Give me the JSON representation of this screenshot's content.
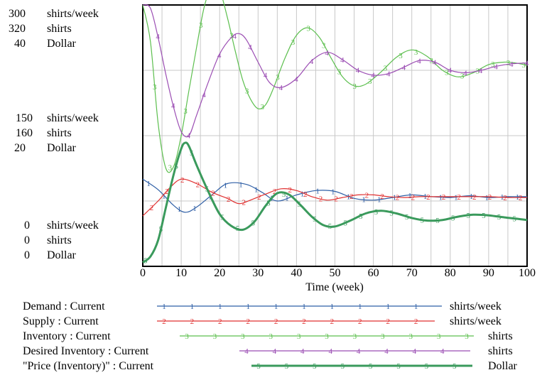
{
  "chart_data": {
    "type": "line",
    "xlabel": "Time (week)",
    "xlim": [
      0,
      100
    ],
    "x_ticks": [
      "0",
      "10",
      "20",
      "30",
      "40",
      "50",
      "60",
      "70",
      "80",
      "90",
      "100"
    ],
    "grid": true,
    "y_axis_labels": {
      "top": [
        {
          "value": "300",
          "unit": "shirts/week"
        },
        {
          "value": "320",
          "unit": "shirts"
        },
        {
          "value": "40",
          "unit": "Dollar"
        }
      ],
      "middle": [
        {
          "value": "150",
          "unit": "shirts/week"
        },
        {
          "value": "160",
          "unit": "shirts"
        },
        {
          "value": "20",
          "unit": "Dollar"
        }
      ],
      "bottom": [
        {
          "value": "0",
          "unit": "shirts/week"
        },
        {
          "value": "0",
          "unit": "shirts"
        },
        {
          "value": "0",
          "unit": "Dollar"
        }
      ]
    },
    "legend_position": "bottom",
    "series": [
      {
        "name": "Demand : Current",
        "marker": "1",
        "unit": "shirts/week",
        "color": "#2f5fa6",
        "ymax": 300,
        "points": [
          [
            0,
            100
          ],
          [
            4,
            88
          ],
          [
            8,
            70
          ],
          [
            11,
            62
          ],
          [
            14,
            68
          ],
          [
            18,
            82
          ],
          [
            22,
            95
          ],
          [
            27,
            94
          ],
          [
            31,
            85
          ],
          [
            35,
            75
          ],
          [
            40,
            82
          ],
          [
            45,
            87
          ],
          [
            50,
            86
          ],
          [
            55,
            78
          ],
          [
            60,
            76
          ],
          [
            65,
            79
          ],
          [
            70,
            82
          ],
          [
            75,
            80
          ],
          [
            80,
            79
          ],
          [
            85,
            81
          ],
          [
            90,
            79
          ],
          [
            95,
            80
          ],
          [
            100,
            80
          ]
        ]
      },
      {
        "name": "Supply : Current",
        "marker": "2",
        "unit": "shirts/week",
        "color": "#e03030",
        "ymax": 300,
        "points": [
          [
            0,
            58
          ],
          [
            4,
            75
          ],
          [
            7,
            90
          ],
          [
            10,
            100
          ],
          [
            14,
            95
          ],
          [
            18,
            85
          ],
          [
            22,
            78
          ],
          [
            25,
            72
          ],
          [
            28,
            76
          ],
          [
            32,
            83
          ],
          [
            36,
            89
          ],
          [
            40,
            87
          ],
          [
            44,
            80
          ],
          [
            48,
            76
          ],
          [
            52,
            79
          ],
          [
            56,
            82
          ],
          [
            60,
            82
          ],
          [
            64,
            80
          ],
          [
            68,
            79
          ],
          [
            72,
            80
          ],
          [
            76,
            80
          ],
          [
            80,
            80
          ],
          [
            85,
            80
          ],
          [
            90,
            80
          ],
          [
            95,
            79
          ],
          [
            100,
            79
          ]
        ]
      },
      {
        "name": "Inventory : Current",
        "marker": "3",
        "unit": "shirts",
        "color": "#5cbf4e",
        "ymax": 320,
        "points": [
          [
            0,
            320
          ],
          [
            2,
            275
          ],
          [
            4,
            175
          ],
          [
            6,
            120
          ],
          [
            8,
            122
          ],
          [
            10,
            160
          ],
          [
            12,
            215
          ],
          [
            14,
            268
          ],
          [
            16,
            318
          ],
          [
            18,
            342
          ],
          [
            20,
            338
          ],
          [
            22,
            305
          ],
          [
            24,
            265
          ],
          [
            26,
            228
          ],
          [
            28,
            205
          ],
          [
            30,
            193
          ],
          [
            32,
            198
          ],
          [
            34,
            218
          ],
          [
            37,
            255
          ],
          [
            40,
            283
          ],
          [
            43,
            292
          ],
          [
            46,
            280
          ],
          [
            49,
            255
          ],
          [
            52,
            232
          ],
          [
            55,
            221
          ],
          [
            58,
            223
          ],
          [
            62,
            238
          ],
          [
            66,
            256
          ],
          [
            70,
            265
          ],
          [
            74,
            257
          ],
          [
            78,
            240
          ],
          [
            82,
            232
          ],
          [
            86,
            237
          ],
          [
            90,
            247
          ],
          [
            94,
            250
          ],
          [
            97,
            249
          ],
          [
            100,
            246
          ]
        ]
      },
      {
        "name": "Desired Inventory : Current",
        "marker": "4",
        "unit": "shirts",
        "color": "#9b4db3",
        "ymax": 320,
        "points": [
          [
            0,
            320
          ],
          [
            2,
            316
          ],
          [
            4,
            280
          ],
          [
            6,
            235
          ],
          [
            8,
            195
          ],
          [
            10,
            165
          ],
          [
            12,
            160
          ],
          [
            14,
            185
          ],
          [
            17,
            225
          ],
          [
            20,
            260
          ],
          [
            23,
            280
          ],
          [
            25,
            285
          ],
          [
            27,
            277
          ],
          [
            30,
            250
          ],
          [
            33,
            225
          ],
          [
            36,
            219
          ],
          [
            40,
            230
          ],
          [
            44,
            252
          ],
          [
            48,
            262
          ],
          [
            52,
            253
          ],
          [
            56,
            240
          ],
          [
            60,
            234
          ],
          [
            64,
            236
          ],
          [
            68,
            244
          ],
          [
            72,
            252
          ],
          [
            76,
            250
          ],
          [
            80,
            240
          ],
          [
            84,
            237
          ],
          [
            88,
            240
          ],
          [
            92,
            245
          ],
          [
            96,
            248
          ],
          [
            100,
            249
          ]
        ]
      },
      {
        "name": "\"Price (Inventory)\" : Current",
        "marker": "5",
        "unit": "Dollar",
        "color": "#3a9a5c",
        "ymax": 40,
        "points": [
          [
            0,
            0.6
          ],
          [
            2,
            1.5
          ],
          [
            4,
            4
          ],
          [
            6,
            9
          ],
          [
            8,
            14
          ],
          [
            10,
            18
          ],
          [
            11,
            18.9
          ],
          [
            12,
            18.4
          ],
          [
            14,
            15.5
          ],
          [
            17,
            11.5
          ],
          [
            20,
            8
          ],
          [
            23,
            6.2
          ],
          [
            26,
            5.6
          ],
          [
            29,
            6.8
          ],
          [
            32,
            9.3
          ],
          [
            35,
            11.2
          ],
          [
            38,
            11
          ],
          [
            41,
            9.4
          ],
          [
            44,
            7.6
          ],
          [
            47,
            6.3
          ],
          [
            50,
            6.1
          ],
          [
            54,
            7
          ],
          [
            58,
            8.1
          ],
          [
            62,
            8.5
          ],
          [
            66,
            8.1
          ],
          [
            70,
            7.4
          ],
          [
            74,
            7
          ],
          [
            78,
            7.1
          ],
          [
            82,
            7.6
          ],
          [
            86,
            7.9
          ],
          [
            90,
            7.8
          ],
          [
            94,
            7.5
          ],
          [
            97,
            7.3
          ],
          [
            100,
            7.1
          ]
        ]
      }
    ]
  }
}
